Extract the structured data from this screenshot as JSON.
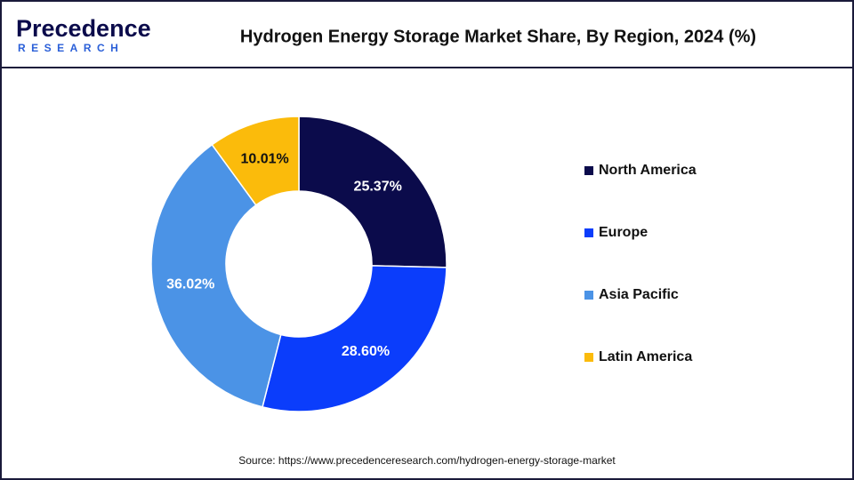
{
  "logo": {
    "name": "Precedence",
    "sub": "RESEARCH"
  },
  "chart_data": {
    "type": "donut",
    "title": "Hydrogen Energy Storage Market Share, By Region, 2024 (%)",
    "categories": [
      "North America",
      "Europe",
      "Asia Pacific",
      "Latin America"
    ],
    "values": [
      25.37,
      28.6,
      36.02,
      10.01
    ],
    "value_labels": [
      "25.37%",
      "28.60%",
      "36.02%",
      "10.01%"
    ],
    "colors": [
      "#0b0b4b",
      "#0b3dfb",
      "#4b93e6",
      "#fbbb0b"
    ],
    "source": "Source: https://www.precedenceresearch.com/hydrogen-energy-storage-market"
  }
}
